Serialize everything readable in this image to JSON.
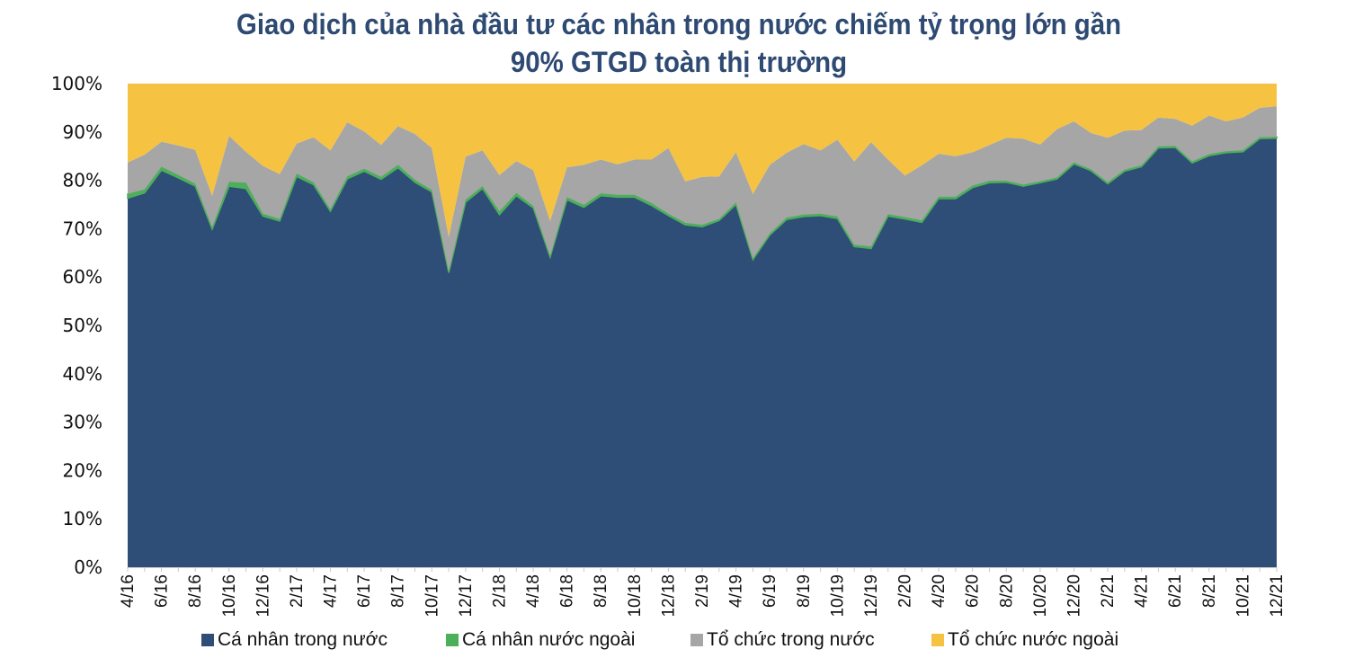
{
  "title": {
    "line1": "Giao dịch của nhà đầu tư các nhân trong nước chiếm tỷ trọng lớn gần",
    "line2": "90% GTGD toàn thị trường"
  },
  "colors": {
    "ca_nhan_trong_nuoc": "#2e4e78",
    "ca_nhan_nuoc_ngoai": "#4caf5a",
    "to_chuc_trong_nuoc": "#a6a6a6",
    "to_chuc_nuoc_ngoai": "#f5c242",
    "title": "#2e4a72"
  },
  "legend": [
    {
      "label": "Cá nhân trong nước",
      "color": "#2e4e78"
    },
    {
      "label": "Cá nhân nước ngoài",
      "color": "#4caf5a"
    },
    {
      "label": "Tổ chức trong nước",
      "color": "#a6a6a6"
    },
    {
      "label": "Tổ chức nước ngoài",
      "color": "#f5c242"
    }
  ],
  "y_axis": {
    "ticks": [
      "0%",
      "10%",
      "20%",
      "30%",
      "40%",
      "50%",
      "60%",
      "70%",
      "80%",
      "90%",
      "100%"
    ]
  },
  "x_axis": {
    "tick_labels": [
      "4/16",
      "6/16",
      "8/16",
      "10/16",
      "12/16",
      "2/17",
      "4/17",
      "6/17",
      "8/17",
      "10/17",
      "12/17",
      "2/18",
      "4/18",
      "6/18",
      "8/18",
      "10/18",
      "12/18",
      "2/19",
      "4/19",
      "6/19",
      "8/19",
      "10/19",
      "12/19",
      "2/20",
      "4/20",
      "6/20",
      "8/20",
      "10/20",
      "12/20",
      "2/21",
      "4/21",
      "6/21",
      "8/21",
      "10/21",
      "12/21"
    ]
  },
  "chart_data": {
    "type": "area",
    "stacked": true,
    "normalized_percent": true,
    "title": "Giao dịch của nhà đầu tư các nhân trong nước chiếm tỷ trọng lớn gần 90% GTGD toàn thị trường",
    "xlabel": "",
    "ylabel": "",
    "ylim": [
      0,
      100
    ],
    "grid": false,
    "legend_position": "bottom",
    "x": [
      "4/16",
      "5/16",
      "6/16",
      "7/16",
      "8/16",
      "9/16",
      "10/16",
      "11/16",
      "12/16",
      "1/17",
      "2/17",
      "3/17",
      "4/17",
      "5/17",
      "6/17",
      "7/17",
      "8/17",
      "9/17",
      "10/17",
      "11/17",
      "12/17",
      "1/18",
      "2/18",
      "3/18",
      "4/18",
      "5/18",
      "6/18",
      "7/18",
      "8/18",
      "9/18",
      "10/18",
      "11/18",
      "12/18",
      "1/19",
      "2/19",
      "3/19",
      "4/19",
      "5/19",
      "6/19",
      "7/19",
      "8/19",
      "9/19",
      "10/19",
      "11/19",
      "12/19",
      "1/20",
      "2/20",
      "3/20",
      "4/20",
      "5/20",
      "6/20",
      "7/20",
      "8/20",
      "9/20",
      "10/20",
      "11/20",
      "12/20",
      "1/21",
      "2/21",
      "3/21",
      "4/21",
      "5/21",
      "6/21",
      "7/21",
      "8/21",
      "9/21",
      "10/21",
      "11/21",
      "12/21"
    ],
    "series": [
      {
        "name": "Cá nhân trong nước",
        "values": [
          76.3,
          77.4,
          82.1,
          80.5,
          78.8,
          69.9,
          78.8,
          78.3,
          72.6,
          71.6,
          80.8,
          79.1,
          73.6,
          80.3,
          81.9,
          80.2,
          82.6,
          79.6,
          77.6,
          60.9,
          75.5,
          78.3,
          72.9,
          76.8,
          74.3,
          64.1,
          76.0,
          74.4,
          76.8,
          76.5,
          76.5,
          74.8,
          72.7,
          70.8,
          70.4,
          71.7,
          75.0,
          63.6,
          68.7,
          71.9,
          72.5,
          72.7,
          72.1,
          66.3,
          65.9,
          72.6,
          72.0,
          71.3,
          76.2,
          76.2,
          78.5,
          79.5,
          79.6,
          78.8,
          79.5,
          80.3,
          83.4,
          82.0,
          79.3,
          81.9,
          82.8,
          86.7,
          86.8,
          83.6,
          85.1,
          85.7,
          85.9,
          88.6,
          88.7
        ]
      },
      {
        "name": "Cá nhân nước ngoài",
        "values": [
          0.9,
          0.7,
          0.7,
          0.6,
          0.5,
          0.4,
          0.9,
          1.2,
          0.5,
          0.4,
          0.6,
          0.5,
          0.4,
          0.5,
          0.5,
          0.5,
          0.6,
          0.5,
          0.4,
          0.3,
          0.5,
          0.5,
          0.7,
          0.6,
          0.4,
          0.3,
          0.5,
          0.5,
          0.5,
          0.5,
          0.5,
          0.5,
          0.4,
          0.4,
          0.4,
          0.3,
          0.4,
          0.3,
          0.3,
          0.4,
          0.4,
          0.4,
          0.4,
          0.4,
          0.4,
          0.4,
          0.4,
          0.4,
          0.4,
          0.4,
          0.4,
          0.4,
          0.3,
          0.3,
          0.3,
          0.3,
          0.3,
          0.3,
          0.3,
          0.3,
          0.3,
          0.3,
          0.3,
          0.3,
          0.3,
          0.3,
          0.3,
          0.3,
          0.3
        ]
      },
      {
        "name": "Tổ chức trong nước",
        "values": [
          6.5,
          7.2,
          5.2,
          6.1,
          7.0,
          6.5,
          9.5,
          6.4,
          9.9,
          9.3,
          6.2,
          9.3,
          12.2,
          11.2,
          7.7,
          6.6,
          8.0,
          9.5,
          8.7,
          7.1,
          8.9,
          7.4,
          7.5,
          6.6,
          7.4,
          7.2,
          6.2,
          8.3,
          7.0,
          6.3,
          7.3,
          9.0,
          13.6,
          8.6,
          9.9,
          8.8,
          10.4,
          13.3,
          14.2,
          13.4,
          14.6,
          13.1,
          15.9,
          17.2,
          21.6,
          11.3,
          8.6,
          11.4,
          8.9,
          8.4,
          6.9,
          7.4,
          8.9,
          9.5,
          7.6,
          10.0,
          8.5,
          7.5,
          9.2,
          8.1,
          7.3,
          6.0,
          5.6,
          7.4,
          8.0,
          6.2,
          6.8,
          6.1,
          6.3
        ]
      },
      {
        "name": "Tổ chức nước ngoài",
        "values": [
          16.3,
          14.7,
          12.0,
          12.8,
          13.7,
          23.2,
          10.8,
          14.1,
          17.0,
          18.7,
          12.4,
          11.1,
          13.8,
          8.0,
          9.9,
          12.7,
          8.8,
          10.4,
          13.3,
          31.7,
          15.1,
          13.8,
          18.9,
          16.0,
          17.9,
          28.4,
          17.3,
          16.8,
          15.7,
          16.7,
          15.7,
          15.7,
          13.3,
          20.2,
          19.3,
          19.2,
          14.2,
          22.8,
          16.8,
          14.3,
          12.5,
          13.8,
          11.6,
          16.1,
          12.1,
          15.7,
          19.0,
          16.9,
          14.5,
          15.0,
          14.2,
          12.7,
          11.2,
          11.4,
          12.6,
          9.4,
          7.8,
          10.2,
          11.2,
          9.7,
          9.6,
          7.0,
          7.3,
          8.7,
          6.6,
          7.8,
          7.0,
          5.0,
          4.7
        ]
      }
    ]
  }
}
